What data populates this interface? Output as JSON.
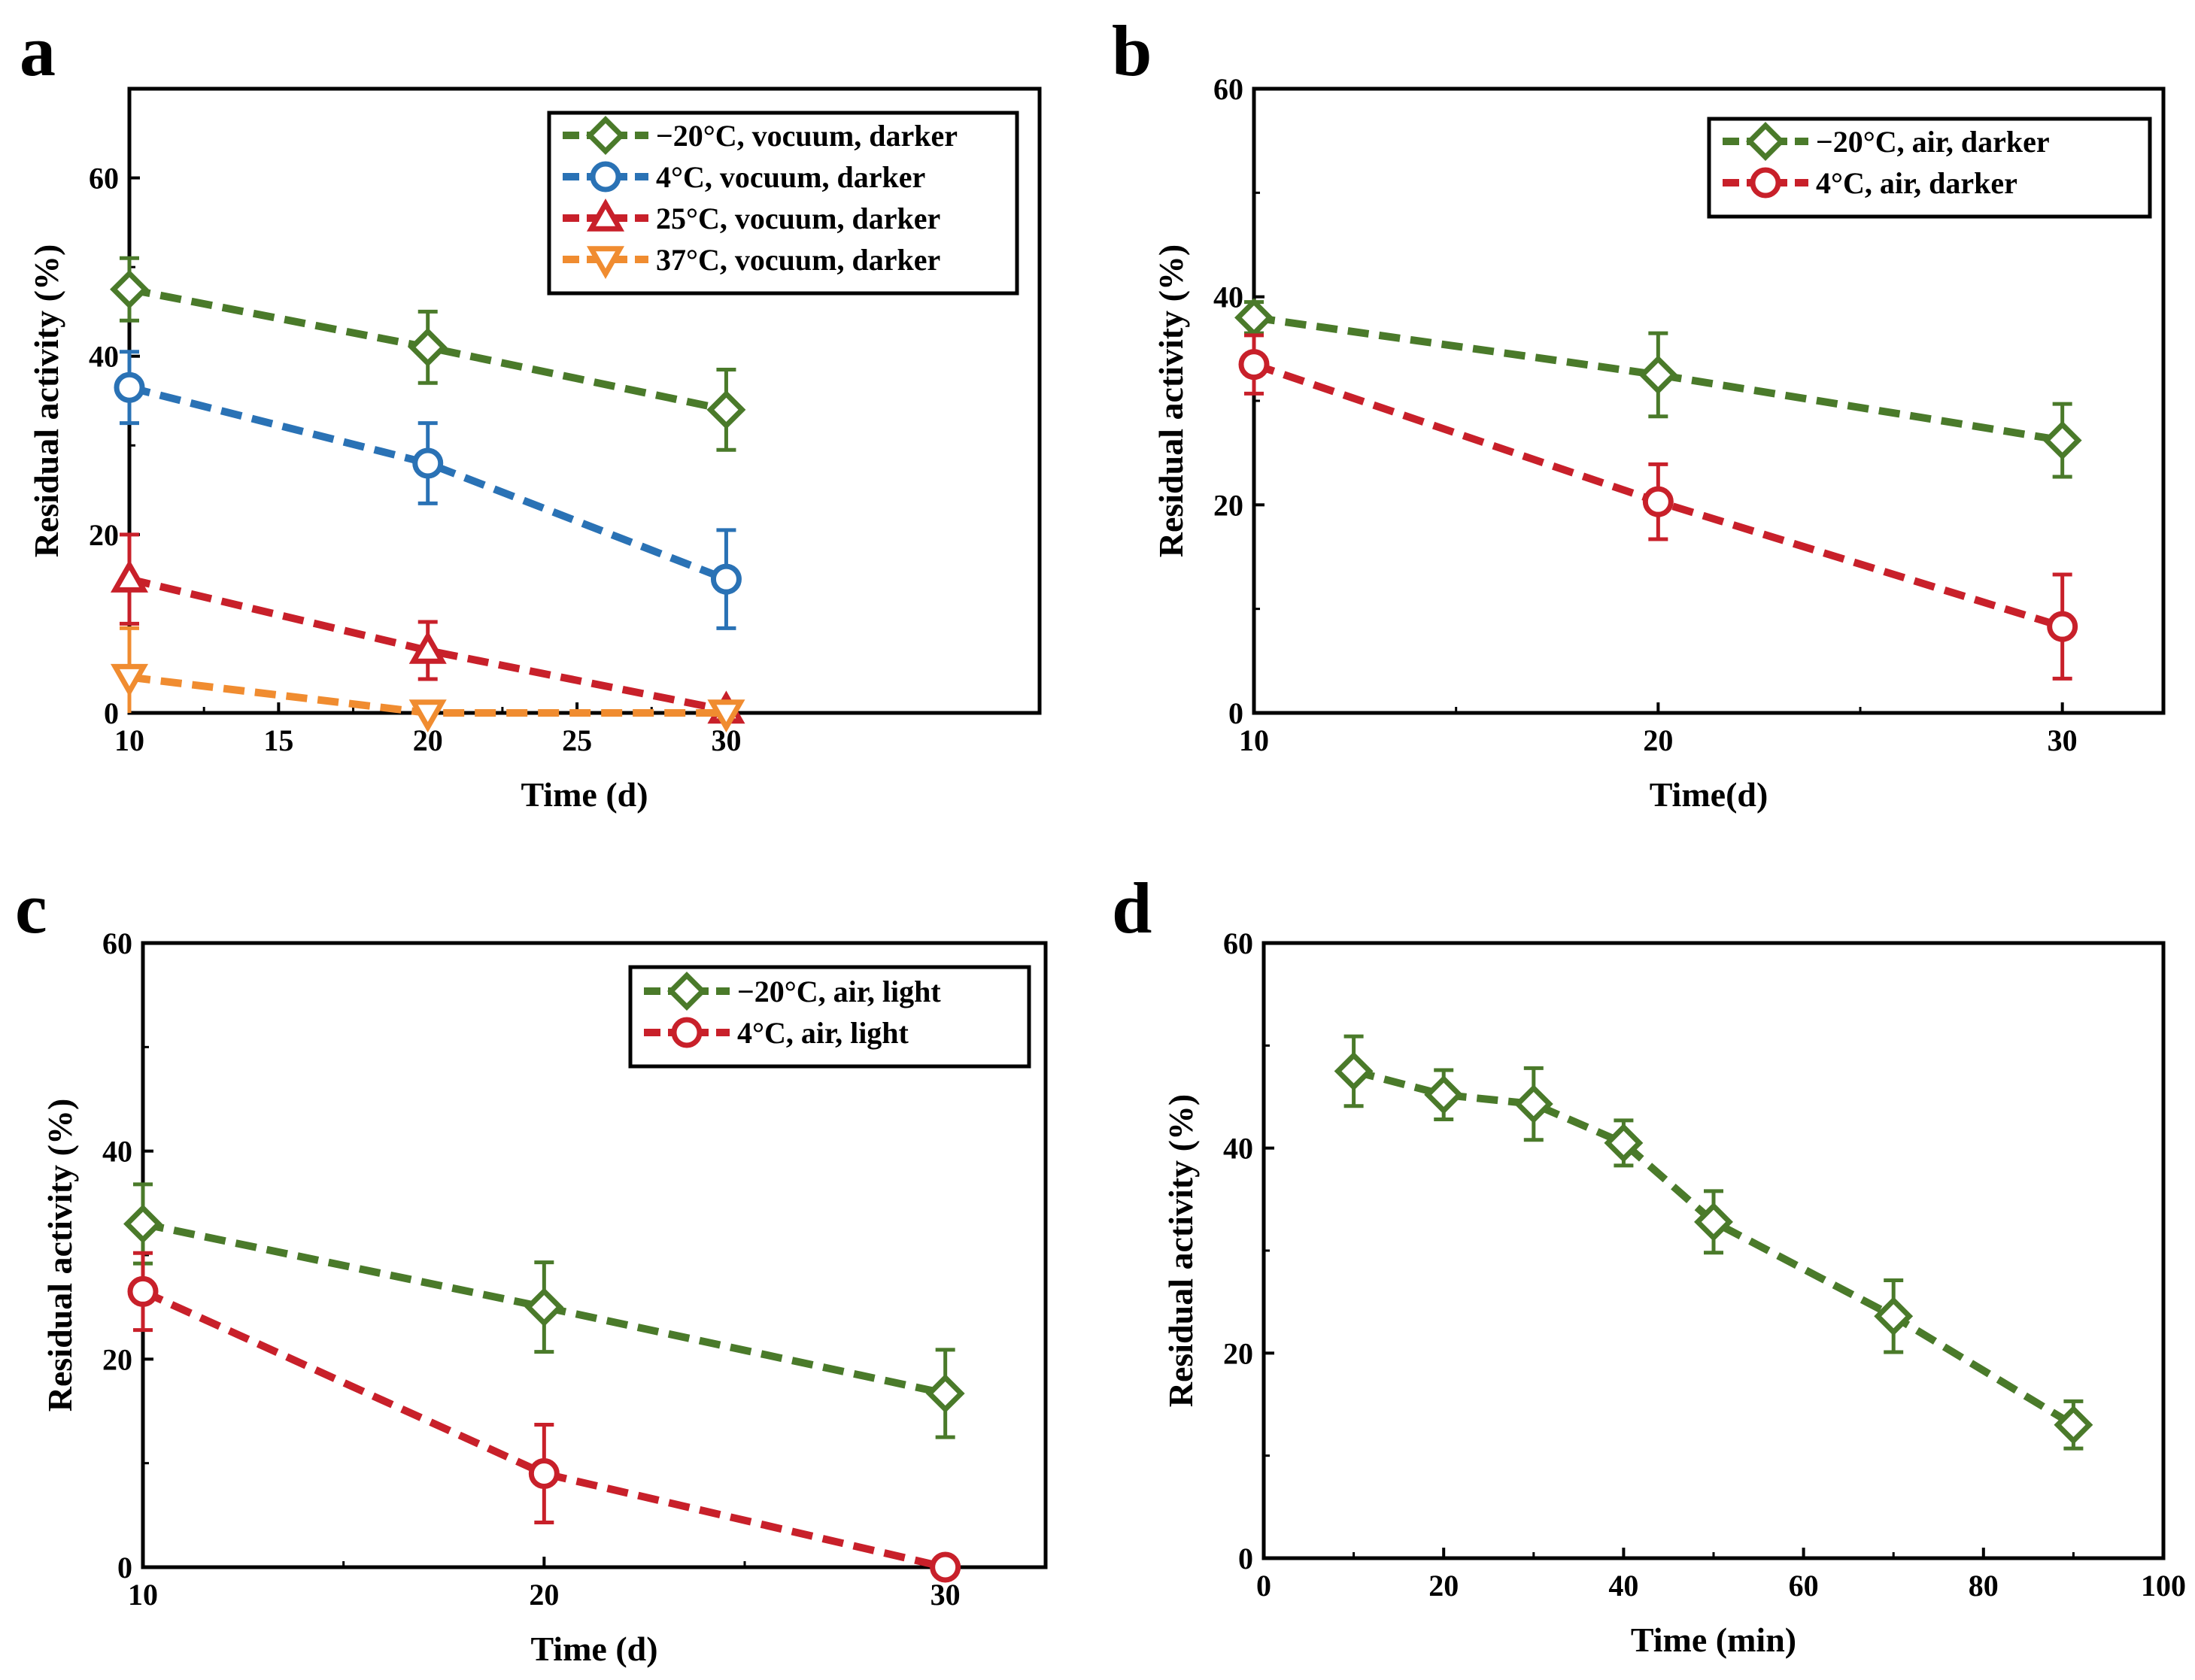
{
  "chart_data": [
    {
      "panel": "a",
      "type": "line",
      "xlabel": "Time (d)",
      "ylabel": "Residual activity (%)",
      "xlim": [
        10,
        40.5
      ],
      "ylim": [
        0,
        70
      ],
      "xticks": [
        10,
        15,
        20,
        25,
        30
      ],
      "yticks": [
        0,
        20,
        40,
        60
      ],
      "legend_position": "top-right",
      "series": [
        {
          "name": "−20°C, vocuum, darker",
          "color": "#4a7a2a",
          "marker": "diamond",
          "x": [
            10,
            20,
            30
          ],
          "y": [
            47.5,
            41,
            34
          ],
          "err": [
            3.5,
            4,
            4.5
          ]
        },
        {
          "name": "4°C, vocuum, darker",
          "color": "#2a72b5",
          "marker": "circle",
          "x": [
            10,
            20,
            30
          ],
          "y": [
            36.5,
            28,
            15
          ],
          "err": [
            4,
            4.5,
            5.5
          ]
        },
        {
          "name": "25°C, vocuum, darker",
          "color": "#c8202a",
          "marker": "triangle-up",
          "x": [
            10,
            20,
            30
          ],
          "y": [
            15,
            7,
            0.3
          ],
          "err": [
            5,
            3.2,
            0
          ]
        },
        {
          "name": "37°C, vocuum, darker",
          "color": "#f08c30",
          "marker": "triangle-down",
          "x": [
            10,
            20,
            30
          ],
          "y": [
            4,
            0,
            0
          ],
          "err": [
            5.5,
            0,
            0
          ]
        }
      ]
    },
    {
      "panel": "b",
      "type": "line",
      "xlabel": "Time(d)",
      "ylabel": "Residual activity (%)",
      "xlim": [
        10,
        32.5
      ],
      "ylim": [
        0,
        60
      ],
      "xticks": [
        10,
        20,
        30
      ],
      "yticks": [
        0,
        20,
        40,
        60
      ],
      "legend_position": "top-right",
      "series": [
        {
          "name": "−20°C, air, darker",
          "color": "#4a7a2a",
          "marker": "diamond",
          "x": [
            10,
            20,
            30
          ],
          "y": [
            38,
            32.5,
            26.2
          ],
          "err": [
            1.5,
            4,
            3.5
          ]
        },
        {
          "name": "4°C, air, darker",
          "color": "#c8202a",
          "marker": "circle",
          "x": [
            10,
            20,
            30
          ],
          "y": [
            33.5,
            20.3,
            8.3
          ],
          "err": [
            2.8,
            3.6,
            5
          ]
        }
      ]
    },
    {
      "panel": "c",
      "type": "line",
      "xlabel": "Time (d)",
      "ylabel": "Residual activity (%)",
      "xlim": [
        10,
        32.5
      ],
      "ylim": [
        0,
        60
      ],
      "xticks": [
        10,
        20,
        30
      ],
      "yticks": [
        0,
        20,
        40,
        60
      ],
      "legend_position": "top-right",
      "series": [
        {
          "name": "−20°C, air, light",
          "color": "#4a7a2a",
          "marker": "diamond",
          "x": [
            10,
            20,
            30
          ],
          "y": [
            33,
            25,
            16.7
          ],
          "err": [
            3.8,
            4.3,
            4.2
          ]
        },
        {
          "name": "4°C, air, light",
          "color": "#c8202a",
          "marker": "circle",
          "x": [
            10,
            20,
            30
          ],
          "y": [
            26.5,
            9,
            0
          ],
          "err": [
            3.7,
            4.7,
            0
          ]
        }
      ]
    },
    {
      "panel": "d",
      "type": "line",
      "xlabel": "Time (min)",
      "ylabel": "Residual activity (%)",
      "xlim": [
        0,
        100
      ],
      "ylim": [
        0,
        60
      ],
      "xticks": [
        0,
        20,
        40,
        60,
        80,
        100
      ],
      "yticks": [
        0,
        20,
        40,
        60
      ],
      "legend_position": "none",
      "series": [
        {
          "name": "",
          "color": "#4a7a2a",
          "marker": "diamond",
          "x": [
            10,
            20,
            30,
            40,
            50,
            70,
            90
          ],
          "y": [
            47.5,
            45.2,
            44.3,
            40.5,
            32.8,
            23.6,
            13
          ],
          "err": [
            3.4,
            2.4,
            3.5,
            2.2,
            3,
            3.5,
            2.3
          ]
        }
      ]
    }
  ]
}
